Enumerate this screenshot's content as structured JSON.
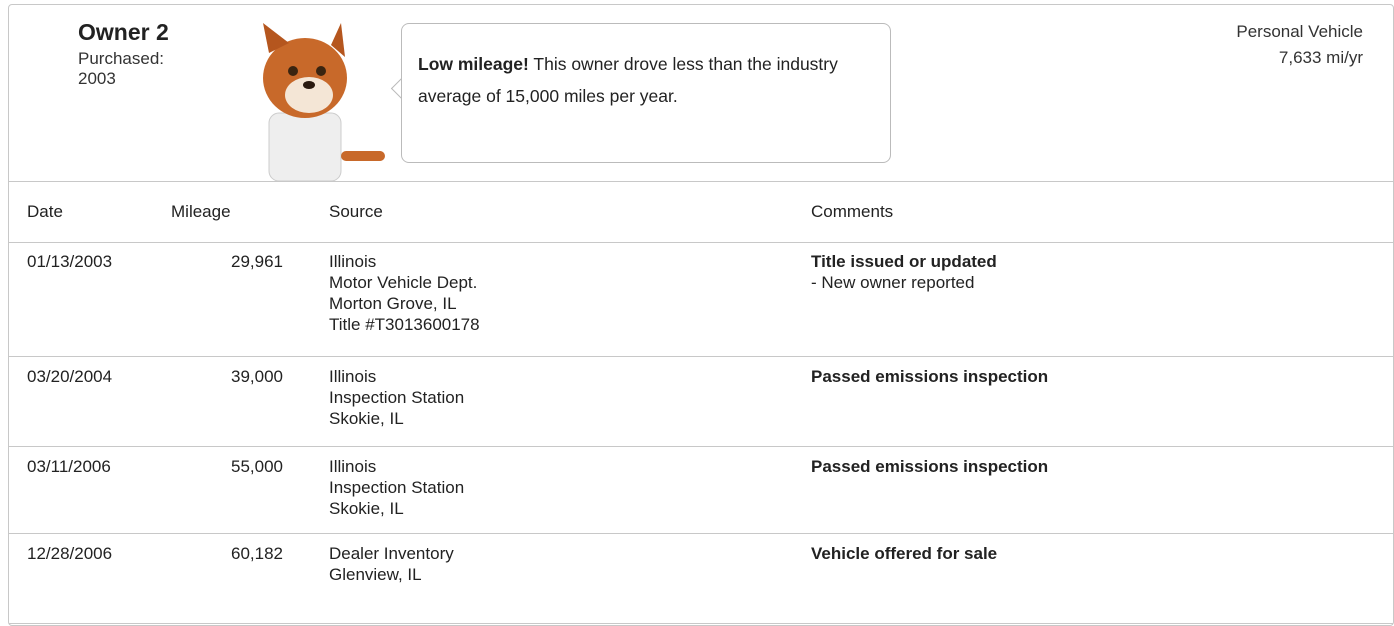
{
  "header": {
    "owner": "Owner 2",
    "purchased_label": "Purchased:",
    "purchased_year": "2003",
    "callout": {
      "highlight": "Low mileage!",
      "text": "This owner drove less than the industry average of 15,000 miles per year."
    },
    "usage_type": "Personal Vehicle",
    "usage_rate": "7,633 mi/yr"
  },
  "table": {
    "columns": [
      "Date",
      "Mileage",
      "Source",
      "Comments"
    ],
    "rows": [
      {
        "date": "01/13/2003",
        "mileage": "29,961",
        "source": [
          "Illinois",
          "Motor Vehicle Dept.",
          "Morton Grove, IL",
          "Title #T3013600178"
        ],
        "comment": "Title issued or updated",
        "details": [
          "- New owner reported"
        ]
      },
      {
        "date": "03/20/2004",
        "mileage": "39,000",
        "source": [
          "Illinois",
          "Inspection Station",
          "Skokie, IL"
        ],
        "comment": "Passed emissions inspection",
        "details": []
      },
      {
        "date": "03/11/2006",
        "mileage": "55,000",
        "source": [
          "Illinois",
          "Inspection Station",
          "Skokie, IL"
        ],
        "comment": "Passed emissions inspection",
        "details": []
      },
      {
        "date": "12/28/2006",
        "mileage": "60,182",
        "source": [
          "Dealer Inventory",
          "Glenview, IL"
        ],
        "comment": "Vehicle offered for sale",
        "details": []
      }
    ]
  }
}
